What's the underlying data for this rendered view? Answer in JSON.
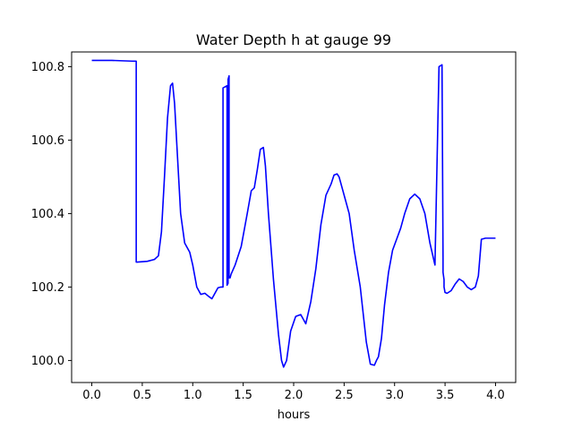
{
  "chart_data": {
    "type": "line",
    "title": "Water Depth h at gauge 99",
    "xlabel": "hours",
    "ylabel": "",
    "xlim": [
      -0.2,
      4.2
    ],
    "ylim": [
      99.94,
      100.84
    ],
    "xticks": [
      0.0,
      0.5,
      1.0,
      1.5,
      2.0,
      2.5,
      3.0,
      3.5,
      4.0
    ],
    "xtick_labels": [
      "0.0",
      "0.5",
      "1.0",
      "1.5",
      "2.0",
      "2.5",
      "3.0",
      "3.5",
      "4.0"
    ],
    "yticks": [
      100.0,
      100.2,
      100.4,
      100.6,
      100.8
    ],
    "ytick_labels": [
      "100.0",
      "100.2",
      "100.4",
      "100.6",
      "100.8"
    ],
    "grid": false,
    "series": [
      {
        "color": "#0000ff",
        "x": [
          0.0,
          0.2,
          0.4,
          0.44,
          0.44,
          0.45,
          0.55,
          0.62,
          0.66,
          0.69,
          0.72,
          0.75,
          0.78,
          0.8,
          0.82,
          0.85,
          0.88,
          0.92,
          0.97,
          1.0,
          1.04,
          1.08,
          1.12,
          1.16,
          1.19,
          1.22,
          1.25,
          1.28,
          1.3,
          1.3,
          1.34,
          1.34,
          1.35,
          1.35,
          1.36,
          1.36,
          1.37,
          1.37,
          1.38,
          1.42,
          1.48,
          1.54,
          1.58,
          1.61,
          1.64,
          1.67,
          1.7,
          1.72,
          1.75,
          1.8,
          1.85,
          1.88,
          1.9,
          1.93,
          1.97,
          2.02,
          2.07,
          2.12,
          2.17,
          2.22,
          2.27,
          2.32,
          2.37,
          2.4,
          2.43,
          2.45,
          2.48,
          2.51,
          2.55,
          2.6,
          2.66,
          2.72,
          2.76,
          2.8,
          2.82,
          2.84,
          2.87,
          2.9,
          2.94,
          2.98,
          3.02,
          3.06,
          3.1,
          3.15,
          3.2,
          3.25,
          3.3,
          3.35,
          3.4,
          3.44,
          3.47,
          3.48,
          3.48,
          3.49,
          3.49,
          3.5,
          3.52,
          3.56,
          3.6,
          3.64,
          3.68,
          3.72,
          3.76,
          3.8,
          3.83,
          3.86,
          3.9,
          3.95,
          4.0
        ],
        "y": [
          100.817,
          100.817,
          100.815,
          100.815,
          100.268,
          100.268,
          100.27,
          100.275,
          100.285,
          100.35,
          100.5,
          100.66,
          100.748,
          100.755,
          100.7,
          100.55,
          100.4,
          100.32,
          100.295,
          100.26,
          100.2,
          100.18,
          100.183,
          100.174,
          100.168,
          100.183,
          100.198,
          100.2,
          100.2,
          100.742,
          100.748,
          100.205,
          100.21,
          100.765,
          100.775,
          100.225,
          100.228,
          100.225,
          100.235,
          100.26,
          100.31,
          100.4,
          100.462,
          100.47,
          100.52,
          100.575,
          100.58,
          100.53,
          100.4,
          100.22,
          100.07,
          100.0,
          99.982,
          100.0,
          100.08,
          100.12,
          100.125,
          100.1,
          100.16,
          100.25,
          100.37,
          100.45,
          100.48,
          100.505,
          100.508,
          100.5,
          100.47,
          100.44,
          100.4,
          100.3,
          100.2,
          100.05,
          99.99,
          99.987,
          100.0,
          100.01,
          100.06,
          100.15,
          100.24,
          100.3,
          100.33,
          100.36,
          100.4,
          100.44,
          100.453,
          100.44,
          100.4,
          100.32,
          100.26,
          100.8,
          100.805,
          100.28,
          100.24,
          100.22,
          100.2,
          100.185,
          100.183,
          100.19,
          100.208,
          100.222,
          100.215,
          100.2,
          100.193,
          100.2,
          100.23,
          100.33,
          100.333,
          100.333,
          100.333
        ]
      }
    ]
  }
}
